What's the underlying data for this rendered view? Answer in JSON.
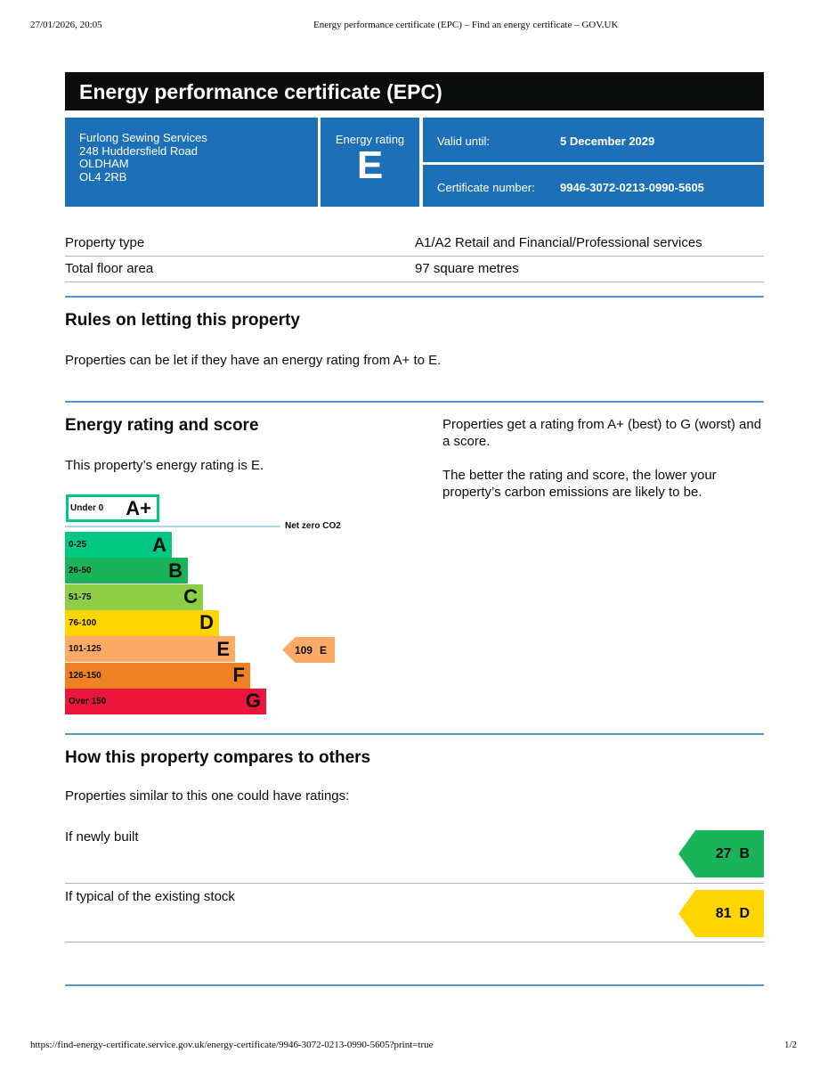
{
  "print_header": {
    "datetime": "27/01/2026, 20:05",
    "title": "Energy performance certificate (EPC) – Find an energy certificate – GOV.UK"
  },
  "title": "Energy performance certificate (EPC)",
  "address": [
    "Furlong Sewing Services",
    "248 Huddersfield Road",
    "OLDHAM",
    "OL4 2RB"
  ],
  "rating_label": "Energy rating",
  "rating": "E",
  "valid_until_label": "Valid until:",
  "valid_until": "5 December 2029",
  "cert_label": "Certificate number:",
  "cert_number": "9946-3072-0213-0990-5605",
  "summary": [
    {
      "label": "Property type",
      "value": "A1/A2 Retail and Financial/Professional services"
    },
    {
      "label": "Total floor area",
      "value": "97 square metres"
    }
  ],
  "rules": {
    "heading": "Rules on letting this property",
    "text": "Properties can be let if they have an energy rating from A+ to E."
  },
  "score": {
    "heading": "Energy rating and score",
    "text": "This property’s energy rating is E.",
    "right1": "Properties get a rating from A+ (best) to G (worst) and a score.",
    "right2": "The better the rating and score, the lower your property’s carbon emissions are likely to be."
  },
  "chart": {
    "aplus": {
      "range": "Under 0",
      "letter": "A+",
      "color": "#00c781"
    },
    "net_zero": "Net zero CO2",
    "bands": [
      {
        "range": "0-25",
        "letter": "A",
        "color": "#00c781"
      },
      {
        "range": "26-50",
        "letter": "B",
        "color": "#19b459"
      },
      {
        "range": "51-75",
        "letter": "C",
        "color": "#8dce46"
      },
      {
        "range": "76-100",
        "letter": "D",
        "color": "#ffd500"
      },
      {
        "range": "101-125",
        "letter": "E",
        "color": "#fcaa65"
      },
      {
        "range": "126-150",
        "letter": "F",
        "color": "#ef8023"
      },
      {
        "range": "Over 150",
        "letter": "G",
        "color": "#e9153b"
      }
    ],
    "current": {
      "score": "109",
      "letter": "E",
      "color": "#fcaa65"
    }
  },
  "compare": {
    "heading": "How this property compares to others",
    "text": "Properties similar to this one could have ratings:",
    "rows": [
      {
        "label": "If newly built",
        "score": "27",
        "letter": "B",
        "color": "#19b459"
      },
      {
        "label": "If typical of the existing stock",
        "score": "81",
        "letter": "D",
        "color": "#ffd500"
      }
    ]
  },
  "footer": {
    "url": "https://find-energy-certificate.service.gov.uk/energy-certificate/9946-3072-0213-0990-5605?print=true",
    "page": "1/2"
  }
}
